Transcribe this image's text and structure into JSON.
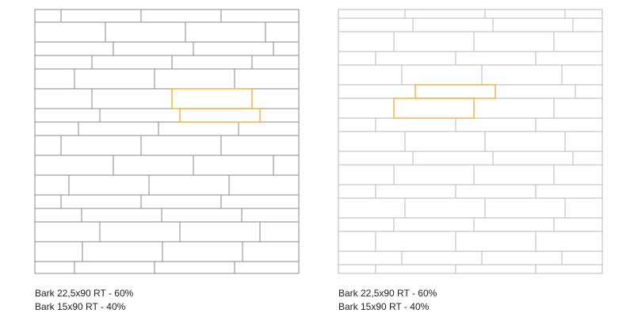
{
  "panels": [
    {
      "caption": [
        "Bark 22,5x90 RT - 60%",
        "Bark 15x90 RT - 40%"
      ]
    },
    {
      "caption": [
        "Bark 22,5x90 RT - 60%",
        "Bark 15x90 RT - 40%"
      ]
    }
  ]
}
